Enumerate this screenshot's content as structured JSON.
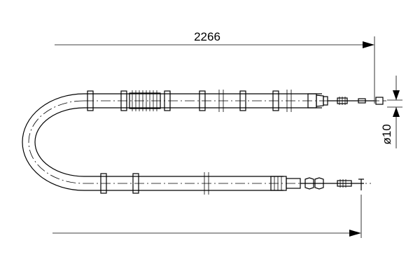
{
  "drawing": {
    "length_dimension": "2266",
    "diameter_dimension": "ø10"
  }
}
